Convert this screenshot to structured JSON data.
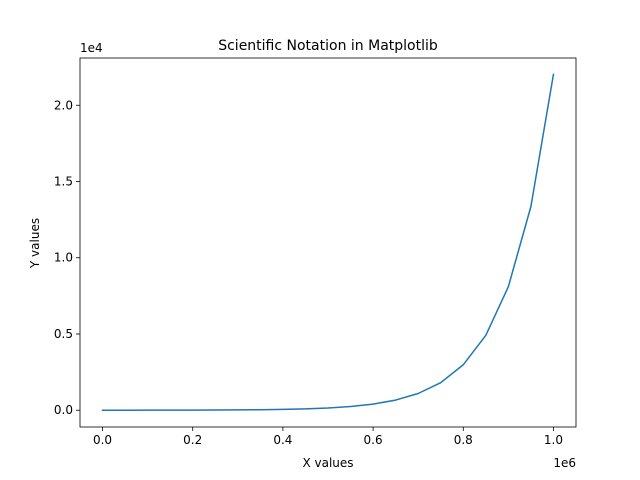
{
  "chart_data": {
    "type": "line",
    "title": "Scientific Notation in Matplotlib",
    "xlabel": "X values",
    "ylabel": "Y values",
    "x_offset_label": "1e6",
    "y_offset_label": "1e4",
    "x_scale_factor": 1000000,
    "y_scale_factor": 10000,
    "xlim": [
      -50000,
      1050000
    ],
    "ylim": [
      -1100,
      23100
    ],
    "x_ticks": [
      0,
      200000,
      400000,
      600000,
      800000,
      1000000
    ],
    "x_tick_labels": [
      "0.0",
      "0.2",
      "0.4",
      "0.6",
      "0.8",
      "1.0"
    ],
    "y_ticks": [
      0,
      5000,
      10000,
      15000,
      20000
    ],
    "y_tick_labels": [
      "0.0",
      "0.5",
      "1.0",
      "1.5",
      "2.0"
    ],
    "grid": false,
    "legend": "none",
    "series": [
      {
        "color": "#1f77b4",
        "x": [
          0,
          50000,
          100000,
          150000,
          200000,
          250000,
          300000,
          350000,
          400000,
          450000,
          500000,
          550000,
          600000,
          650000,
          700000,
          750000,
          800000,
          850000,
          900000,
          950000,
          1000000
        ],
        "y": [
          1,
          2,
          3,
          5,
          7,
          12,
          20,
          33,
          55,
          90,
          148,
          245,
          403,
          665,
          1097,
          1808,
          2981,
          4915,
          8103,
          13360,
          22026
        ]
      }
    ]
  }
}
